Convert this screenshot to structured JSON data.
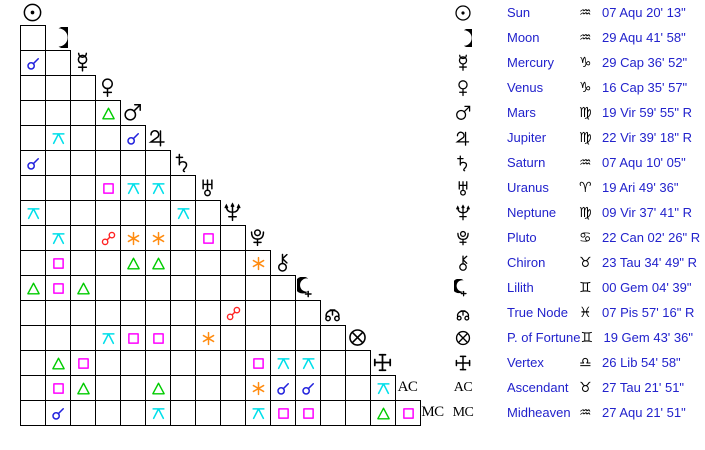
{
  "colors": {
    "background": "#ffffff",
    "grid_line": "#000000",
    "glyph_black": "#000000",
    "table_text_blue": "#2222cc",
    "aspect_conjunction": "#2222dd",
    "aspect_opposition": "#ff2222",
    "aspect_trine": "#00cc00",
    "aspect_square": "#ff00ff",
    "aspect_sextile": "#ff8c11",
    "aspect_quincunx": "#00dfea"
  },
  "grid": {
    "planets": [
      {
        "id": "sun"
      },
      {
        "id": "moon"
      },
      {
        "id": "mercury"
      },
      {
        "id": "venus"
      },
      {
        "id": "mars"
      },
      {
        "id": "jupiter"
      },
      {
        "id": "saturn"
      },
      {
        "id": "uranus"
      },
      {
        "id": "neptune"
      },
      {
        "id": "pluto"
      },
      {
        "id": "chiron"
      },
      {
        "id": "lilith"
      },
      {
        "id": "true-node"
      },
      {
        "id": "p-of-fortune"
      },
      {
        "id": "vertex"
      },
      {
        "id": "ac",
        "label": "AC"
      },
      {
        "id": "mc",
        "label": "MC"
      }
    ],
    "aspects": [
      {
        "row": 2,
        "col": 0,
        "a": "mercury",
        "b": "sun",
        "type": "conjunction"
      },
      {
        "row": 4,
        "col": 3,
        "a": "mars",
        "b": "venus",
        "type": "trine"
      },
      {
        "row": 5,
        "col": 1,
        "a": "jupiter",
        "b": "moon",
        "type": "quincunx"
      },
      {
        "row": 5,
        "col": 4,
        "a": "jupiter",
        "b": "mars",
        "type": "conjunction"
      },
      {
        "row": 6,
        "col": 0,
        "a": "saturn",
        "b": "sun",
        "type": "conjunction"
      },
      {
        "row": 7,
        "col": 3,
        "a": "uranus",
        "b": "venus",
        "type": "square"
      },
      {
        "row": 7,
        "col": 4,
        "a": "uranus",
        "b": "mars",
        "type": "quincunx"
      },
      {
        "row": 7,
        "col": 5,
        "a": "uranus",
        "b": "jupiter",
        "type": "quincunx"
      },
      {
        "row": 8,
        "col": 0,
        "a": "neptune",
        "b": "sun",
        "type": "quincunx"
      },
      {
        "row": 8,
        "col": 6,
        "a": "neptune",
        "b": "saturn",
        "type": "quincunx"
      },
      {
        "row": 9,
        "col": 1,
        "a": "pluto",
        "b": "moon",
        "type": "quincunx"
      },
      {
        "row": 9,
        "col": 3,
        "a": "pluto",
        "b": "venus",
        "type": "opposition"
      },
      {
        "row": 9,
        "col": 4,
        "a": "pluto",
        "b": "mars",
        "type": "sextile"
      },
      {
        "row": 9,
        "col": 5,
        "a": "pluto",
        "b": "jupiter",
        "type": "sextile"
      },
      {
        "row": 9,
        "col": 7,
        "a": "pluto",
        "b": "uranus",
        "type": "square"
      },
      {
        "row": 10,
        "col": 1,
        "a": "chiron",
        "b": "moon",
        "type": "square"
      },
      {
        "row": 10,
        "col": 4,
        "a": "chiron",
        "b": "mars",
        "type": "trine"
      },
      {
        "row": 10,
        "col": 5,
        "a": "chiron",
        "b": "jupiter",
        "type": "trine"
      },
      {
        "row": 10,
        "col": 9,
        "a": "chiron",
        "b": "pluto",
        "type": "sextile"
      },
      {
        "row": 11,
        "col": 0,
        "a": "lilith",
        "b": "sun",
        "type": "trine"
      },
      {
        "row": 11,
        "col": 1,
        "a": "lilith",
        "b": "moon",
        "type": "square"
      },
      {
        "row": 11,
        "col": 2,
        "a": "lilith",
        "b": "mercury",
        "type": "trine"
      },
      {
        "row": 12,
        "col": 8,
        "a": "true-node",
        "b": "neptune",
        "type": "opposition"
      },
      {
        "row": 13,
        "col": 3,
        "a": "p-of-fortune",
        "b": "venus",
        "type": "quincunx"
      },
      {
        "row": 13,
        "col": 4,
        "a": "p-of-fortune",
        "b": "mars",
        "type": "square"
      },
      {
        "row": 13,
        "col": 5,
        "a": "p-of-fortune",
        "b": "jupiter",
        "type": "square"
      },
      {
        "row": 13,
        "col": 7,
        "a": "p-of-fortune",
        "b": "uranus",
        "type": "sextile"
      },
      {
        "row": 14,
        "col": 1,
        "a": "vertex",
        "b": "moon",
        "type": "trine"
      },
      {
        "row": 14,
        "col": 2,
        "a": "vertex",
        "b": "mercury",
        "type": "square"
      },
      {
        "row": 14,
        "col": 9,
        "a": "vertex",
        "b": "pluto",
        "type": "square"
      },
      {
        "row": 14,
        "col": 10,
        "a": "vertex",
        "b": "chiron",
        "type": "quincunx"
      },
      {
        "row": 14,
        "col": 11,
        "a": "vertex",
        "b": "lilith",
        "type": "quincunx"
      },
      {
        "row": 15,
        "col": 1,
        "a": "ac",
        "b": "moon",
        "type": "square"
      },
      {
        "row": 15,
        "col": 2,
        "a": "ac",
        "b": "mercury",
        "type": "trine"
      },
      {
        "row": 15,
        "col": 5,
        "a": "ac",
        "b": "jupiter",
        "type": "trine"
      },
      {
        "row": 15,
        "col": 9,
        "a": "ac",
        "b": "pluto",
        "type": "sextile"
      },
      {
        "row": 15,
        "col": 10,
        "a": "ac",
        "b": "chiron",
        "type": "conjunction"
      },
      {
        "row": 15,
        "col": 11,
        "a": "ac",
        "b": "lilith",
        "type": "conjunction"
      },
      {
        "row": 15,
        "col": 14,
        "a": "ac",
        "b": "vertex",
        "type": "quincunx"
      },
      {
        "row": 16,
        "col": 1,
        "a": "mc",
        "b": "moon",
        "type": "conjunction"
      },
      {
        "row": 16,
        "col": 5,
        "a": "mc",
        "b": "jupiter",
        "type": "quincunx"
      },
      {
        "row": 16,
        "col": 9,
        "a": "mc",
        "b": "pluto",
        "type": "quincunx"
      },
      {
        "row": 16,
        "col": 10,
        "a": "mc",
        "b": "chiron",
        "type": "square"
      },
      {
        "row": 16,
        "col": 11,
        "a": "mc",
        "b": "lilith",
        "type": "square"
      },
      {
        "row": 16,
        "col": 14,
        "a": "mc",
        "b": "vertex",
        "type": "trine"
      },
      {
        "row": 16,
        "col": 15,
        "a": "mc",
        "b": "ac",
        "type": "square"
      }
    ]
  },
  "legend": {
    "rows": [
      {
        "icon": "sun",
        "name": "Sun",
        "sign": "Aquarius",
        "sign_glyph": "♒",
        "position": "07 Aqu 20' 13\""
      },
      {
        "icon": "moon",
        "name": "Moon",
        "sign": "Aquarius",
        "sign_glyph": "♒",
        "position": "29 Aqu 41' 58\""
      },
      {
        "icon": "mercury",
        "name": "Mercury",
        "sign": "Capricorn",
        "sign_glyph": "♑",
        "position": "29 Cap 36' 52\""
      },
      {
        "icon": "venus",
        "name": "Venus",
        "sign": "Capricorn",
        "sign_glyph": "♑",
        "position": "16 Cap 35' 57\""
      },
      {
        "icon": "mars",
        "name": "Mars",
        "sign": "Virgo",
        "sign_glyph": "♍",
        "position": "19 Vir 59' 55\" R"
      },
      {
        "icon": "jupiter",
        "name": "Jupiter",
        "sign": "Virgo",
        "sign_glyph": "♍",
        "position": "22 Vir 39' 18\" R"
      },
      {
        "icon": "saturn",
        "name": "Saturn",
        "sign": "Aquarius",
        "sign_glyph": "♒",
        "position": "07 Aqu 10' 05\""
      },
      {
        "icon": "uranus",
        "name": "Uranus",
        "sign": "Aries",
        "sign_glyph": "♈",
        "position": "19 Ari 49' 36\""
      },
      {
        "icon": "neptune",
        "name": "Neptune",
        "sign": "Virgo",
        "sign_glyph": "♍",
        "position": "09 Vir 37' 41\" R"
      },
      {
        "icon": "pluto",
        "name": "Pluto",
        "sign": "Cancer",
        "sign_glyph": "♋",
        "position": "22 Can 02' 26\" R"
      },
      {
        "icon": "chiron",
        "name": "Chiron",
        "sign": "Taurus",
        "sign_glyph": "♉",
        "position": "23 Tau 34' 49\" R"
      },
      {
        "icon": "lilith",
        "name": "Lilith",
        "sign": "Gemini",
        "sign_glyph": "♊",
        "position": "00 Gem 04' 39\""
      },
      {
        "icon": "true-node",
        "name": "True Node",
        "sign": "Pisces",
        "sign_glyph": "♓",
        "position": "07 Pis 57' 16\" R"
      },
      {
        "icon": "p-of-fortune",
        "name": "P. of Fortune",
        "sign": "Gemini",
        "sign_glyph": "♊",
        "position": "19 Gem 43' 36\""
      },
      {
        "icon": "vertex",
        "name": "Vertex",
        "sign": "Libra",
        "sign_glyph": "♎",
        "position": "26 Lib 54' 58\""
      },
      {
        "icon": "ac",
        "icon_text": "AC",
        "name": "Ascendant",
        "sign": "Taurus",
        "sign_glyph": "♉",
        "position": "27 Tau 21' 51\""
      },
      {
        "icon": "mc",
        "icon_text": "MC",
        "name": "Midheaven",
        "sign": "Aquarius",
        "sign_glyph": "♒",
        "position": "27 Aqu 21' 51\""
      }
    ]
  }
}
